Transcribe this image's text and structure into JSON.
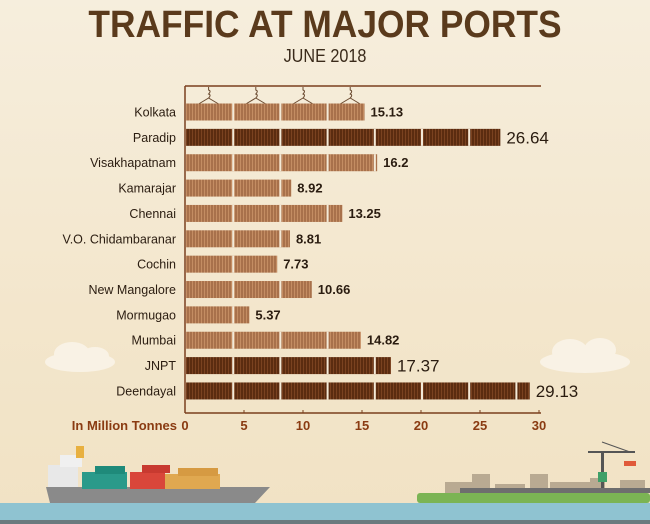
{
  "chart_data": {
    "type": "bar",
    "orientation": "horizontal",
    "title": "TRAFFIC AT MAJOR PORTS",
    "subtitle": "JUNE 2018",
    "xlabel": "In Million Tonnes",
    "ylabel": "",
    "xlim": [
      0,
      30
    ],
    "xticks": [
      0,
      5,
      10,
      15,
      20,
      25,
      30
    ],
    "grid": false,
    "categories": [
      "Kolkata",
      "Paradip",
      "Visakhapatnam",
      "Kamarajar",
      "Chennai",
      "V.O. Chidambaranar",
      "Cochin",
      "New Mangalore",
      "Mormugao",
      "Mumbai",
      "JNPT",
      "Deendayal"
    ],
    "values": [
      15.13,
      26.64,
      16.2,
      8.92,
      13.25,
      8.81,
      7.73,
      10.66,
      5.37,
      14.82,
      17.37,
      29.13
    ],
    "value_labels": [
      "15.13",
      "26.64",
      "16.2",
      "8.92",
      "13.25",
      "8.81",
      "7.73",
      "10.66",
      "5.37",
      "14.82",
      "17.37",
      "29.13"
    ],
    "highlighted": [
      "Paradip",
      "JNPT",
      "Deendayal"
    ]
  },
  "colors": {
    "bar_light": "#a8714b",
    "bar_dark": "#5b2c10",
    "title": "#5a3a1c",
    "axis": "#7a3f1e",
    "xlabel": "#8a3b12"
  }
}
